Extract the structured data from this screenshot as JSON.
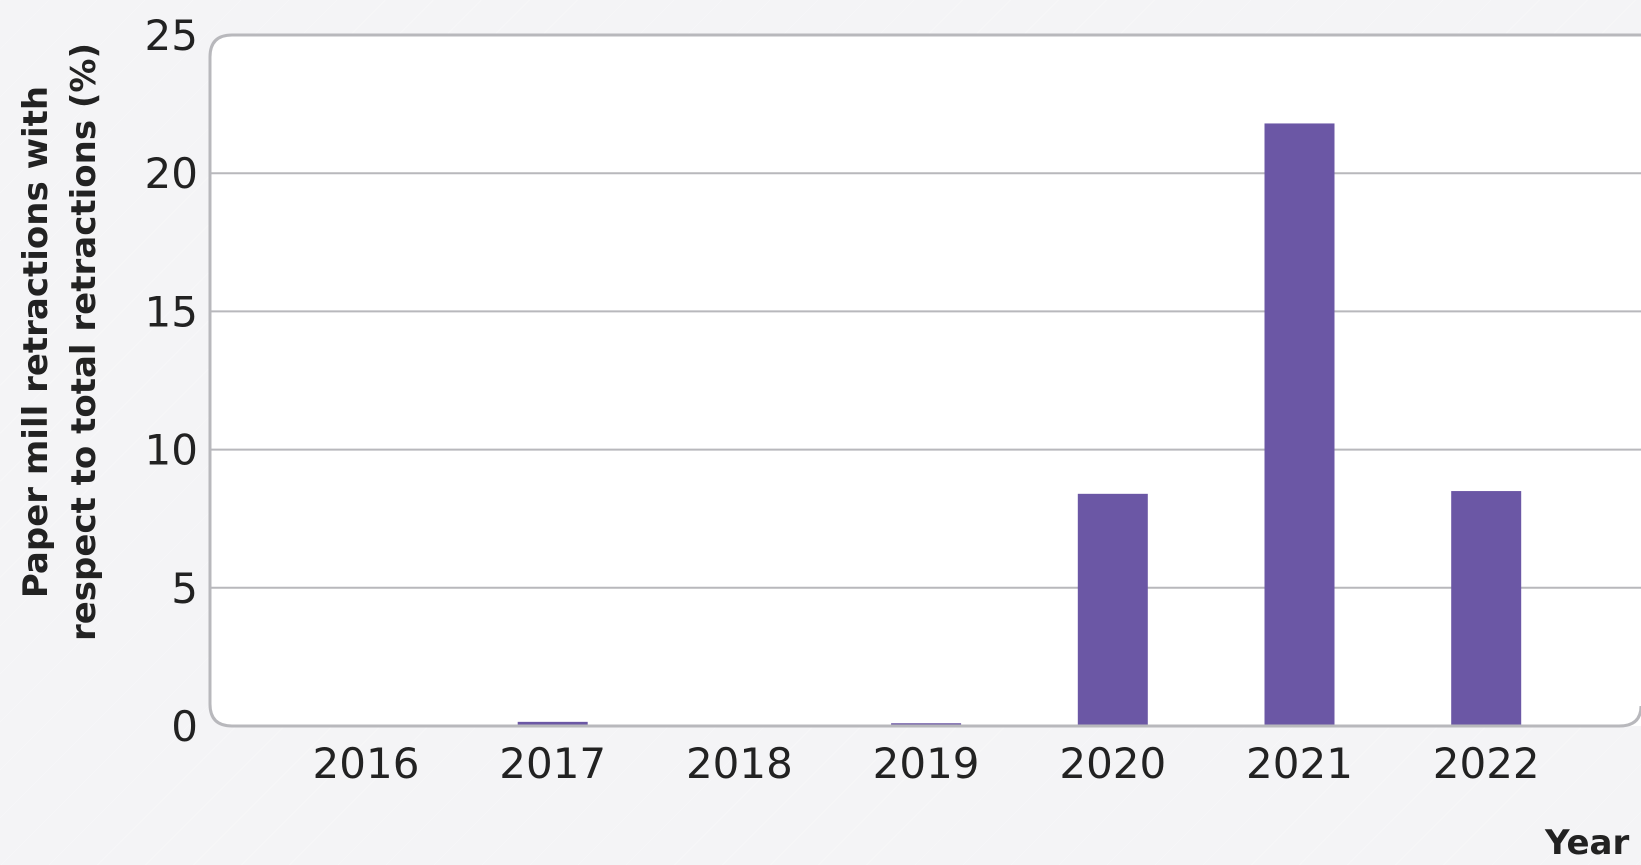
{
  "chart_data": {
    "type": "bar",
    "categories": [
      "2016",
      "2017",
      "2018",
      "2019",
      "2020",
      "2021",
      "2022"
    ],
    "values": [
      0.02,
      0.15,
      0.03,
      0.1,
      8.4,
      21.8,
      8.5
    ],
    "title": "",
    "xlabel": "Year",
    "ylabel_lines": [
      "Paper mill retractions with",
      "respect to total retractions (%)"
    ],
    "ylim": [
      0,
      25
    ],
    "yticks": [
      0,
      5,
      10,
      15,
      20,
      25
    ],
    "ytick_labels": [
      "0",
      "5",
      "10",
      "15",
      "20",
      "25"
    ],
    "grid": true,
    "legend": "none"
  },
  "colors": {
    "bar": "#6b57a5",
    "grid": "#b8b8bc",
    "plot_background": "#ffffff",
    "frame": "#b8b8bc",
    "page_background": "#f4f4f6",
    "text": "#222222"
  }
}
